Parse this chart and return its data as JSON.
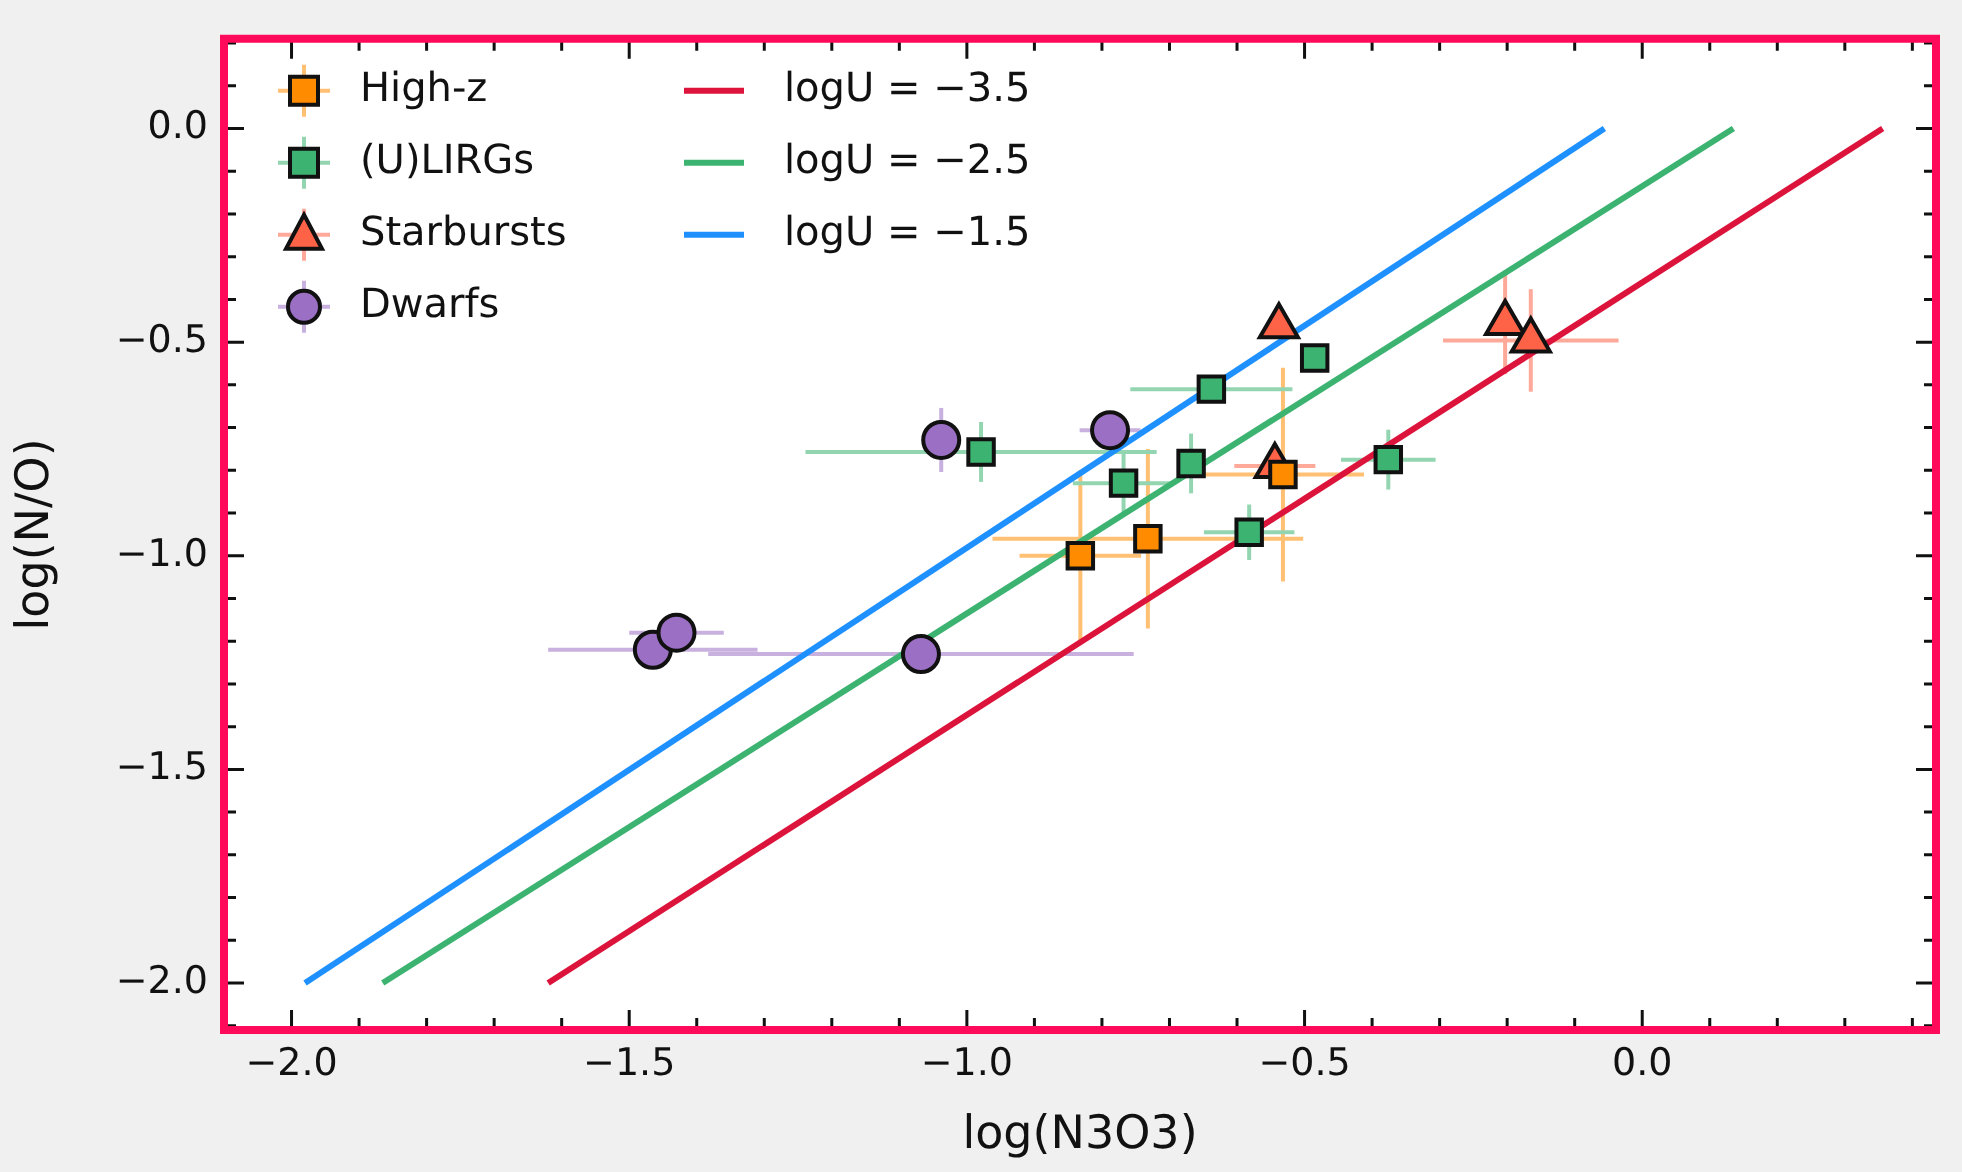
{
  "chart_data": {
    "type": "scatter",
    "xlabel": "log(N3O3)",
    "ylabel": "log(N/O)",
    "xlim": [
      -2.1,
      0.435
    ],
    "ylim": [
      -2.11,
      0.21
    ],
    "xticks": [
      {
        "value": -2,
        "label": "−2.0"
      },
      {
        "value": -1.5,
        "label": "−1.5"
      },
      {
        "value": -1,
        "label": "−1.0"
      },
      {
        "value": -0.5,
        "label": "−0.5"
      },
      {
        "value": 0,
        "label": "0.0"
      }
    ],
    "yticks": [
      {
        "value": -2,
        "label": "−2.0"
      },
      {
        "value": -1.5,
        "label": "−1.5"
      },
      {
        "value": -1,
        "label": "−1.0"
      },
      {
        "value": -0.5,
        "label": "−0.5"
      },
      {
        "value": 0,
        "label": "0.0"
      }
    ],
    "grid": false,
    "legend": "top left",
    "series": [
      {
        "name": "High-z",
        "marker": "square",
        "color": "#ff8c00",
        "x": [
          -0.832,
          -0.732,
          -0.532
        ],
        "values": [
          -1.0,
          -0.96,
          -0.81
        ],
        "xerrors": [
          0.09,
          0.23,
          0.12
        ],
        "errors": [
          0.2,
          0.21,
          0.25
        ]
      },
      {
        "name": "(U)LIRGs",
        "marker": "square",
        "color": "#3cb371",
        "x": [
          -0.979,
          -0.768,
          -0.668,
          -0.638,
          -0.485,
          -0.582,
          -0.376
        ],
        "values": [
          -0.757,
          -0.83,
          -0.784,
          -0.61,
          -0.537,
          -0.945,
          -0.775
        ],
        "xerrors": [
          0.26,
          0.075,
          null,
          0.12,
          null,
          0.067,
          0.07
        ],
        "errors": [
          0.07,
          0.07,
          0.07,
          null,
          null,
          0.065,
          0.07
        ]
      },
      {
        "name": "Starbursts",
        "marker": "triangle",
        "color": "#ff6347",
        "x": [
          -0.538,
          -0.203,
          -0.165,
          -0.544
        ],
        "values": [
          -0.463,
          -0.455,
          -0.496,
          -0.79
        ],
        "xerrors": [
          null,
          null,
          0.13,
          0.06
        ],
        "errors": [
          null,
          0.12,
          0.12,
          null
        ]
      },
      {
        "name": "Dwarfs",
        "marker": "circle",
        "color": "#9b6fc4",
        "x": [
          -1.038,
          -0.788,
          -1.465,
          -1.43,
          -1.068
        ],
        "values": [
          -0.729,
          -0.706,
          -1.22,
          -1.18,
          -1.23
        ],
        "xerrors": [
          null,
          0.045,
          0.155,
          0.07,
          0.315
        ],
        "errors": [
          0.075,
          null,
          null,
          null,
          null
        ]
      },
      {
        "name": "logU = −3.5",
        "type": "line",
        "marker": "none",
        "line_style": "solid",
        "color": "#dc143c",
        "x": [
          -1.62,
          0.356
        ],
        "values": [
          -2.0,
          0.0
        ]
      },
      {
        "name": "logU = −2.5",
        "type": "line",
        "marker": "none",
        "line_style": "solid",
        "color": "#3cb371",
        "x": [
          -1.865,
          0.135
        ],
        "values": [
          -2.0,
          0.0
        ]
      },
      {
        "name": "logU = −1.5",
        "type": "line",
        "marker": "none",
        "line_style": "solid",
        "color": "#1e90ff",
        "x": [
          -1.98,
          -0.056
        ],
        "values": [
          -2.0,
          0.0
        ]
      }
    ]
  }
}
